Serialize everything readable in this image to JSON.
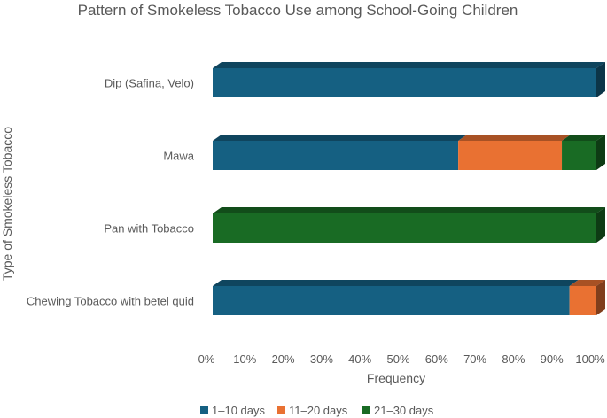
{
  "chart_data": {
    "type": "bar",
    "orientation": "horizontal",
    "stacked": "percent",
    "style": "3d",
    "title": "Pattern of Smokeless Tobacco Use among School-Going Children",
    "xlabel": "Frequency",
    "ylabel": "Type of Smokeless Tobacco",
    "categories": [
      "Dip (Safina, Velo)",
      "Mawa",
      "Pan with Tobacco",
      "Chewing Tobacco with betel quid"
    ],
    "series": [
      {
        "name": "1–10 days",
        "color": "#156082",
        "values": [
          100,
          64,
          0,
          93
        ]
      },
      {
        "name": "11–20 days",
        "color": "#E97132",
        "values": [
          0,
          27,
          0,
          7
        ]
      },
      {
        "name": "21–30 days",
        "color": "#196B24",
        "values": [
          0,
          9,
          100,
          0
        ]
      }
    ],
    "xlim": [
      0,
      100
    ],
    "xticks": [
      "0%",
      "10%",
      "20%",
      "30%",
      "40%",
      "50%",
      "60%",
      "70%",
      "80%",
      "90%",
      "100%"
    ],
    "grid": false,
    "legend": "bottom"
  }
}
